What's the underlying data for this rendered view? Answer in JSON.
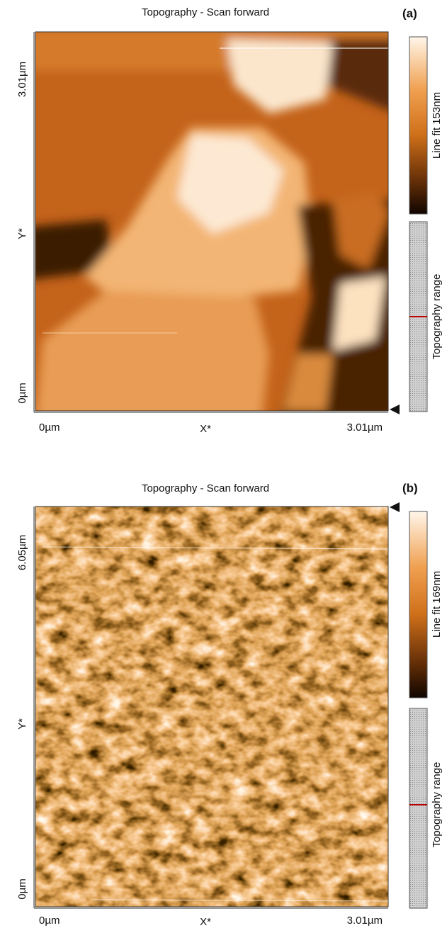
{
  "panels": [
    {
      "label": "(a)",
      "title": "Topography - Scan forward",
      "y_axis": {
        "top": "3.01µm",
        "name": "Y*",
        "bottom": "0µm"
      },
      "x_axis": {
        "left": "0µm",
        "name": "X*",
        "right": "3.01µm"
      },
      "colorbar_label": "Line fit 153nm",
      "range_label": "Topography range"
    },
    {
      "label": "(b)",
      "title": "Topography - Scan forward",
      "y_axis": {
        "top": "6.05µm",
        "name": "Y*",
        "bottom": "0µm"
      },
      "x_axis": {
        "left": "0µm",
        "name": "X*",
        "right": "3.01µm"
      },
      "colorbar_label": "Line fit 169nm",
      "range_label": "Topography range"
    }
  ]
}
